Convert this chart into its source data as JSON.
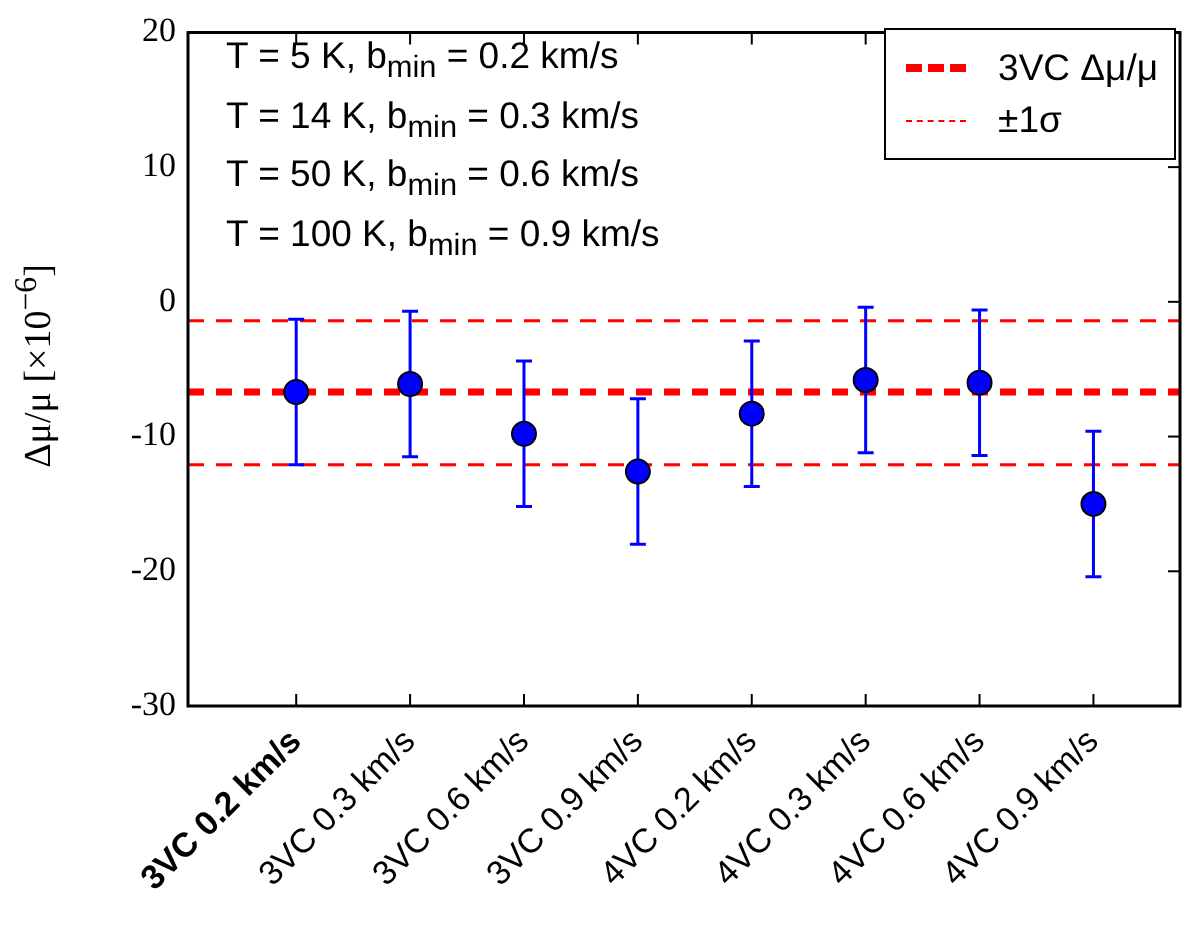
{
  "chart_data": {
    "type": "scatter",
    "categories": [
      "3VC 0.2 km/s",
      "3VC 0.3 km/s",
      "3VC 0.6 km/s",
      "3VC 0.9 km/s",
      "4VC 0.2 km/s",
      "4VC 0.3 km/s",
      "4VC 0.6 km/s",
      "4VC 0.9 km/s"
    ],
    "series": [
      {
        "color": "#0000ff",
        "values": [
          -6.7,
          -6.1,
          -9.8,
          -12.6,
          -8.3,
          -5.8,
          -6.0,
          -15.0
        ],
        "errors": [
          5.4,
          5.4,
          5.4,
          5.4,
          5.4,
          5.4,
          5.4,
          5.4
        ]
      }
    ],
    "ylabel": "Δμ/μ [×10$^{−6}$]",
    "ylim": [
      -30,
      20
    ],
    "yticks": [
      -30,
      -20,
      -10,
      0,
      10,
      20
    ],
    "ref_lines": [
      {
        "axis": "y",
        "value": -6.7,
        "label": "3VC Δμ/μ",
        "color": "#ff0000",
        "line_style": "dashed"
      },
      {
        "axis": "y",
        "value": -1.4,
        "label": "±1σ",
        "color": "#ff0000",
        "line_style": "dashed"
      },
      {
        "axis": "y",
        "value": -12.1,
        "color": "#ff0000",
        "line_style": "dashed"
      }
    ],
    "annotations": [
      "T = 5 K, b$_{min}$ = 0.2 km/s",
      "T = 14 K, b$_{min}$ = 0.3 km/s",
      "T = 50 K, b$_{min}$ = 0.6 km/s",
      "T = 100 K, b$_{min}$ = 0.9 km/s"
    ],
    "legend": "top right",
    "marker": "circle",
    "grid": false
  }
}
